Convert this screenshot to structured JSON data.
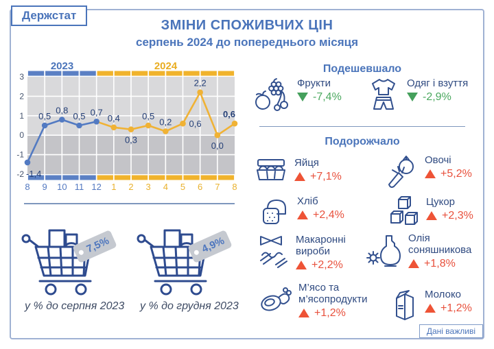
{
  "logo": "Держстат",
  "title": "ЗМІНИ СПОЖИВЧИХ ЦІН",
  "subtitle": "серпень 2024 до попереднього місяця",
  "chart_data": {
    "type": "line",
    "title": "Зміни споживчих цін до попереднього місяця, %",
    "ylim": [
      -2,
      3
    ],
    "y_ticks": [
      3,
      2,
      1,
      0,
      -1,
      -2
    ],
    "grid": "on",
    "sections": [
      {
        "label": "2023",
        "months": [
          "8",
          "9",
          "10",
          "11",
          "12"
        ]
      },
      {
        "label": "2024",
        "months": [
          "1",
          "2",
          "3",
          "4",
          "5",
          "6",
          "7",
          "8"
        ]
      }
    ],
    "colors": {
      "band2023": "#5b80c4",
      "band2024": "#f0b32c",
      "line2023": "#527ac2",
      "line2024": "#f0b235",
      "xtick2023": "#5379c1",
      "xtick2024": "#e9b12d",
      "bg_upper": "#d9d9db",
      "bg_lower": "#c4c4c8"
    },
    "points": [
      {
        "x": "8",
        "value": -1.4,
        "label": "-1,4",
        "series": "2023",
        "label_pos": "below-right"
      },
      {
        "x": "9",
        "value": 0.5,
        "label": "0,5",
        "series": "2023",
        "label_pos": "above"
      },
      {
        "x": "10",
        "value": 0.8,
        "label": "0,8",
        "series": "2023",
        "label_pos": "above"
      },
      {
        "x": "11",
        "value": 0.5,
        "label": "0,5",
        "series": "2023",
        "label_pos": "above"
      },
      {
        "x": "12",
        "value": 0.7,
        "label": "0,7",
        "series": "2023",
        "label_pos": "above"
      },
      {
        "x": "1",
        "value": 0.4,
        "label": "0,4",
        "series": "2024",
        "label_pos": "above"
      },
      {
        "x": "2",
        "value": 0.3,
        "label": "0,3",
        "series": "2024",
        "label_pos": "below"
      },
      {
        "x": "3",
        "value": 0.5,
        "label": "0,5",
        "series": "2024",
        "label_pos": "above"
      },
      {
        "x": "4",
        "value": 0.2,
        "label": "0,2",
        "series": "2024",
        "label_pos": "above"
      },
      {
        "x": "5",
        "value": 0.6,
        "label": "0,6",
        "series": "2024",
        "label_pos": "right"
      },
      {
        "x": "6",
        "value": 2.2,
        "label": "2,2",
        "series": "2024",
        "label_pos": "above"
      },
      {
        "x": "7",
        "value": 0.0,
        "label": "0,0",
        "series": "2024",
        "label_pos": "below"
      },
      {
        "x": "8",
        "value": 0.6,
        "label": "0,6",
        "series": "2024",
        "label_pos": "above-left",
        "bold": true
      }
    ]
  },
  "cheaper": {
    "header": "Подешевшало",
    "items": [
      {
        "name": "Фрукти",
        "delta": "-7,4%",
        "icon": "fruits"
      },
      {
        "name": "Одяг і взуття",
        "delta": "-2,9%",
        "icon": "clothing"
      }
    ]
  },
  "pricier": {
    "header": "Подорожчало",
    "items": [
      {
        "name": "Яйця",
        "delta": "+7,1%",
        "icon": "eggs"
      },
      {
        "name": "Овочі",
        "delta": "+5,2%",
        "icon": "vegetables"
      },
      {
        "name": "Хліб",
        "delta": "+2,4%",
        "icon": "bread"
      },
      {
        "name": "Цукор",
        "delta": "+2,3%",
        "icon": "sugar"
      },
      {
        "name": "Макаронні вироби",
        "delta": "+2,2%",
        "icon": "pasta"
      },
      {
        "name": "Олія соняшникова",
        "delta": "+1,8%",
        "icon": "oil"
      },
      {
        "name": "М’ясо та м’ясопродукти",
        "delta": "+1,2%",
        "icon": "meat"
      },
      {
        "name": "Молоко",
        "delta": "+1,2%",
        "icon": "milk"
      }
    ]
  },
  "carts": [
    {
      "value": "7,5%",
      "caption": "у % до серпня 2023"
    },
    {
      "value": "4,9%",
      "caption": "у % до грудня 2023"
    }
  ],
  "badge": "Дані важливі"
}
